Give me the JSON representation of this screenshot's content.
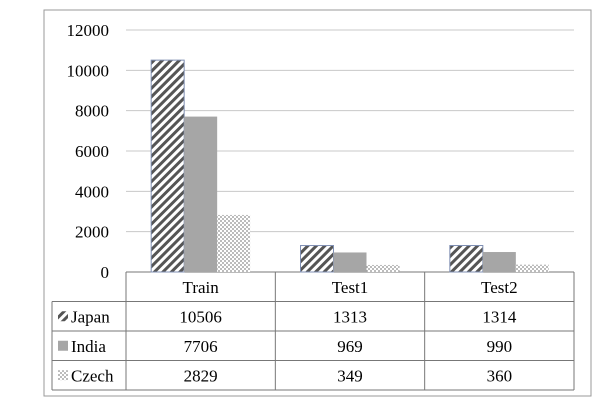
{
  "chart_data": {
    "type": "bar",
    "categories": [
      "Train",
      "Test1",
      "Test2"
    ],
    "series": [
      {
        "name": "Japan",
        "values": [
          10506,
          1313,
          1314
        ],
        "pattern": "diagonal-hatch",
        "color": "#555555"
      },
      {
        "name": "India",
        "values": [
          7706,
          969,
          990
        ],
        "pattern": "solid",
        "color": "#a6a6a6"
      },
      {
        "name": "Czech",
        "values": [
          2829,
          349,
          360
        ],
        "pattern": "dots",
        "color": "#9a9a9a"
      }
    ],
    "ylim": [
      0,
      12000
    ],
    "yticks": [
      "0",
      "2000",
      "4000",
      "6000",
      "8000",
      "10000",
      "12000"
    ],
    "grid": true,
    "legend": "data-table-below"
  }
}
